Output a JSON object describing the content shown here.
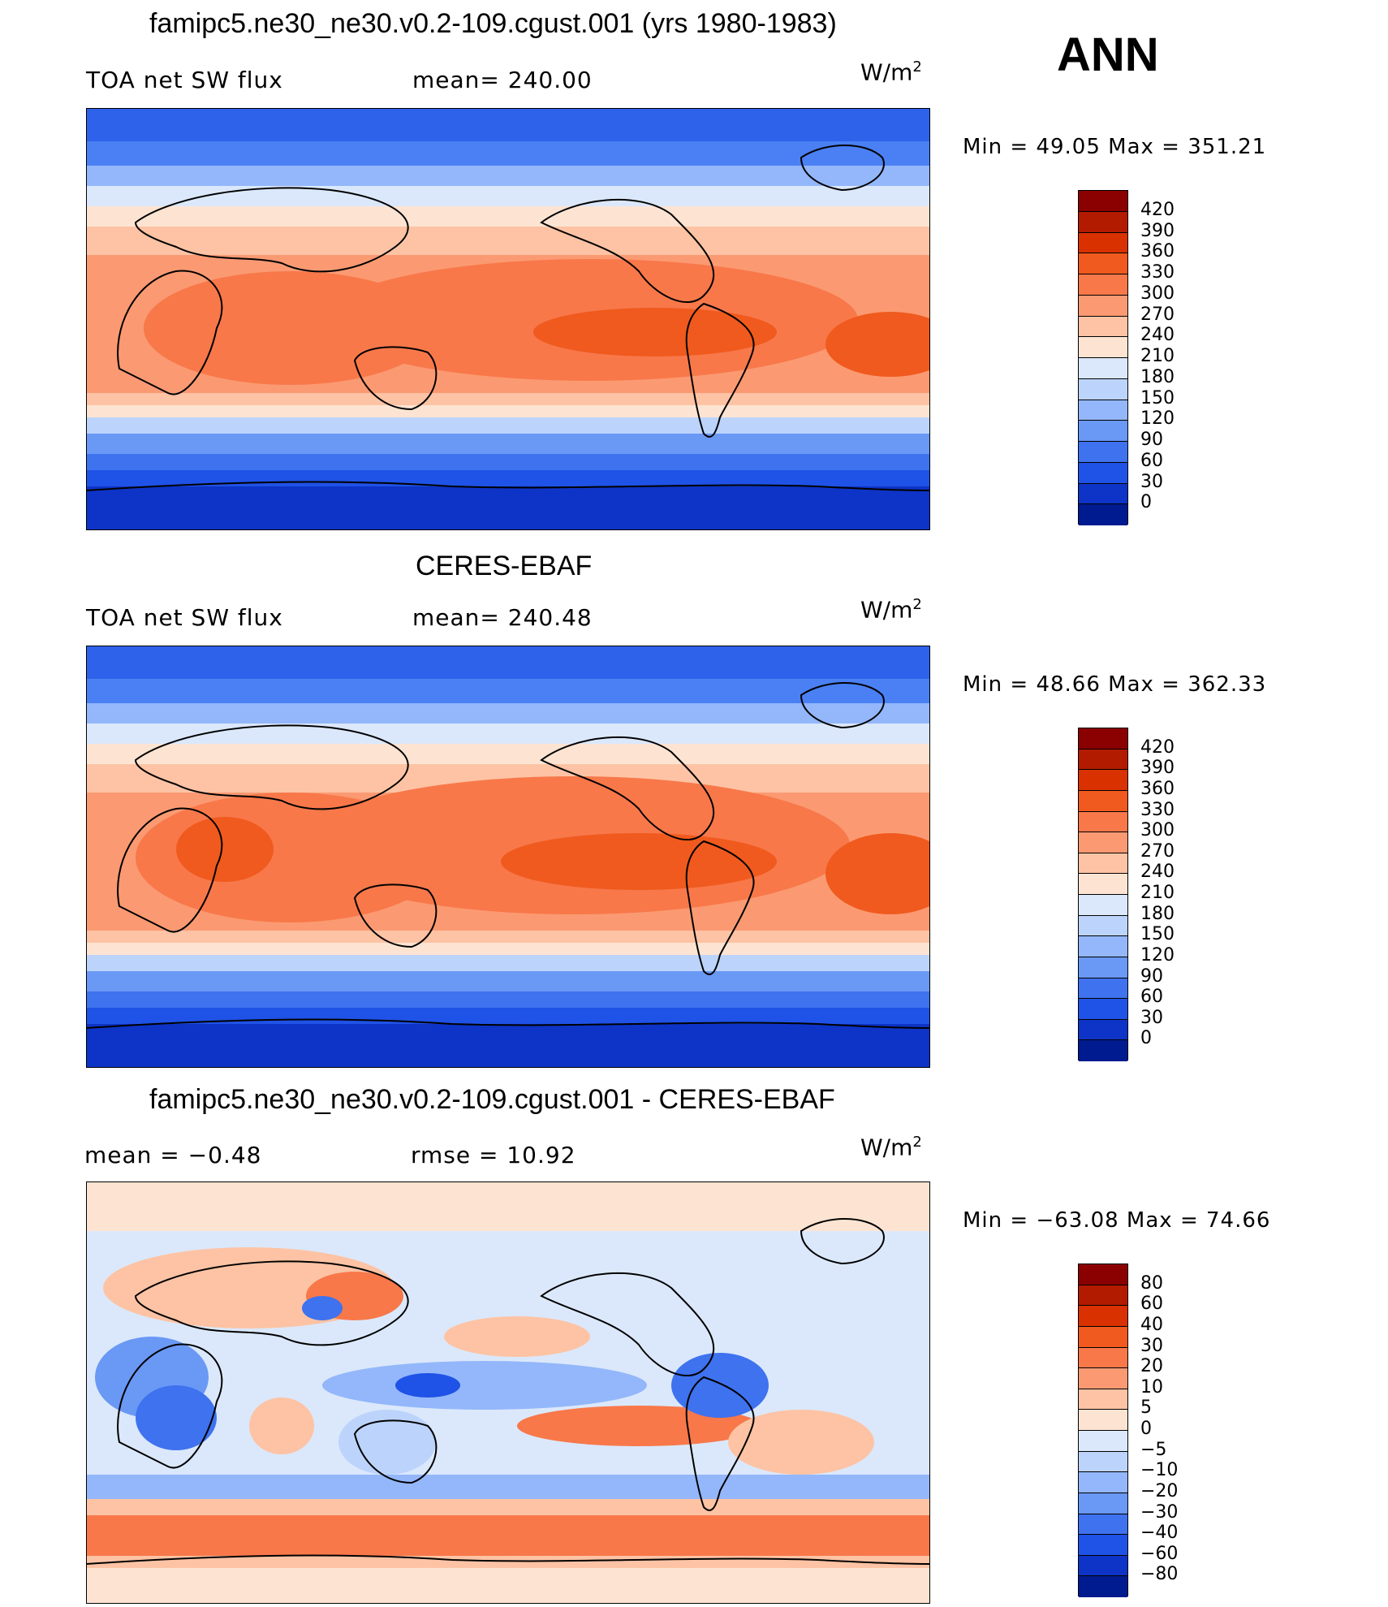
{
  "header": {
    "title": "famipc5.ne30_ne30.v0.2-109.cgust.001 (yrs 1980-1983)",
    "season": "ANN"
  },
  "panels": [
    {
      "name": "model",
      "title": "famipc5.ne30_ne30.v0.2-109.cgust.001 (yrs 1980-1983)",
      "left_label": "TOA net SW flux",
      "center_label": "mean=  240.00",
      "units": "W/m",
      "units_exp": "2",
      "minmax": "Min  =     49.05  Max  =  351.21",
      "colorbar": {
        "labels": [
          "420",
          "390",
          "360",
          "330",
          "300",
          "270",
          "240",
          "210",
          "180",
          "150",
          "120",
          "90",
          "60",
          "30",
          "0"
        ],
        "colors": [
          "#8b0000",
          "#b31b00",
          "#d93200",
          "#f05a1e",
          "#f8784a",
          "#fb9a72",
          "#fdc3a4",
          "#fde4d2",
          "#dbe8fb",
          "#bcd4fb",
          "#93b7fa",
          "#6a98f5",
          "#3e72ef",
          "#1f52e6",
          "#0d34c6",
          "#001a8f"
        ]
      }
    },
    {
      "name": "obs",
      "title": "CERES-EBAF",
      "left_label": "TOA net SW flux",
      "center_label": "mean=  240.48",
      "units": "W/m",
      "units_exp": "2",
      "minmax": "Min  =     48.66  Max  =  362.33",
      "colorbar": {
        "labels": [
          "420",
          "390",
          "360",
          "330",
          "300",
          "270",
          "240",
          "210",
          "180",
          "150",
          "120",
          "90",
          "60",
          "30",
          "0"
        ],
        "colors": [
          "#8b0000",
          "#b31b00",
          "#d93200",
          "#f05a1e",
          "#f8784a",
          "#fb9a72",
          "#fdc3a4",
          "#fde4d2",
          "#dbe8fb",
          "#bcd4fb",
          "#93b7fa",
          "#6a98f5",
          "#3e72ef",
          "#1f52e6",
          "#0d34c6",
          "#001a8f"
        ]
      }
    },
    {
      "name": "diff",
      "title": "famipc5.ne30_ne30.v0.2-109.cgust.001 - CERES-EBAF",
      "left_label": "mean  =     −0.48",
      "center_label": "rmse  =     10.92",
      "units": "W/m",
      "units_exp": "2",
      "minmax": "Min  =  −63.08  Max  =     74.66",
      "colorbar": {
        "labels": [
          "80",
          "60",
          "40",
          "30",
          "20",
          "10",
          "5",
          "0",
          "−5",
          "−10",
          "−20",
          "−30",
          "−40",
          "−60",
          "−80"
        ],
        "colors": [
          "#8b0000",
          "#b31b00",
          "#d93200",
          "#f05a1e",
          "#f8784a",
          "#fb9a72",
          "#fdc3a4",
          "#fde4d2",
          "#dbe8fb",
          "#bcd4fb",
          "#93b7fa",
          "#6a98f5",
          "#3e72ef",
          "#1f52e6",
          "#0d34c6",
          "#001a8f"
        ]
      }
    }
  ]
}
